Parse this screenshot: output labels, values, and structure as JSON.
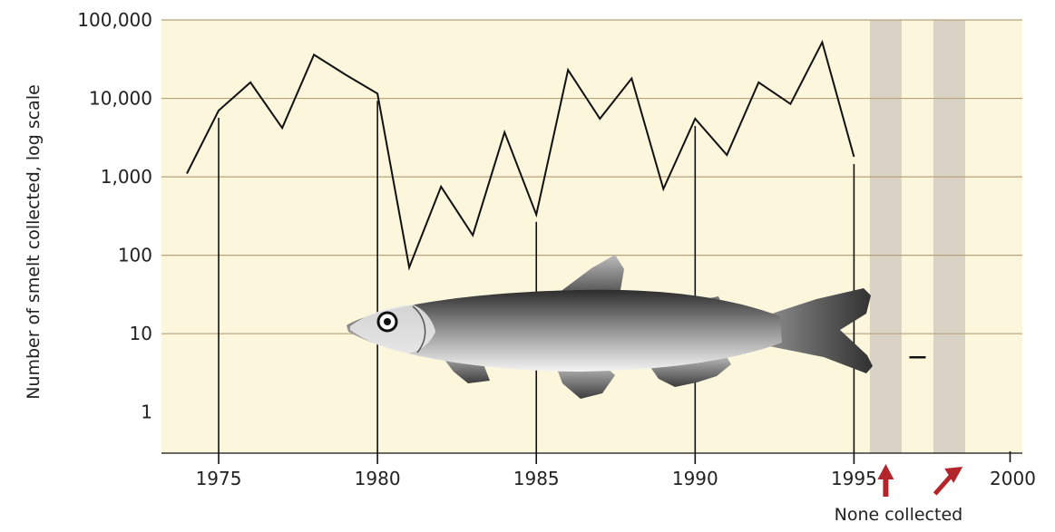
{
  "colors": {
    "plot_background": "#fbf6dc",
    "gap_band": "#d8d3c4",
    "grid_line": "#b8a27a",
    "data_line": "#111111",
    "arrow": "#b2262b"
  },
  "chart_data": {
    "type": "line",
    "title": "",
    "xlabel": "",
    "ylabel": "Number of smelt collected, log scale",
    "y_scale": "log",
    "ylim": [
      0.3,
      100000
    ],
    "xlim": [
      1973.2,
      2000.3
    ],
    "y_ticks": [
      {
        "value": 100000,
        "label": "100,000"
      },
      {
        "value": 10000,
        "label": "10,000"
      },
      {
        "value": 1000,
        "label": "1,000"
      },
      {
        "value": 100,
        "label": "100"
      },
      {
        "value": 10,
        "label": "10"
      },
      {
        "value": 1,
        "label": "1"
      }
    ],
    "x_ticks": [
      {
        "value": 1975,
        "label": "1975"
      },
      {
        "value": 1980,
        "label": "1980"
      },
      {
        "value": 1985,
        "label": "1985"
      },
      {
        "value": 1990,
        "label": "1990"
      },
      {
        "value": 1995,
        "label": "1995"
      },
      {
        "value": 2000,
        "label": "2000"
      }
    ],
    "grid": true,
    "series": [
      {
        "x": [
          1974,
          1975,
          1976,
          1977,
          1978,
          1979,
          1980,
          1981,
          1982,
          1983,
          1984,
          1985,
          1986,
          1987,
          1988,
          1989,
          1990,
          1991,
          1992,
          1993,
          1994,
          1995
        ],
        "y": [
          1100,
          7000,
          16000,
          4200,
          36000,
          20000,
          11500,
          70,
          750,
          180,
          3700,
          330,
          23000,
          5500,
          18000,
          700,
          5500,
          1900,
          16000,
          8500,
          52000,
          1800
        ]
      }
    ],
    "no_data_years": [
      1996,
      1998
    ],
    "dash_marker_year": 1997,
    "annotations": [
      {
        "text": "None collected"
      }
    ]
  }
}
